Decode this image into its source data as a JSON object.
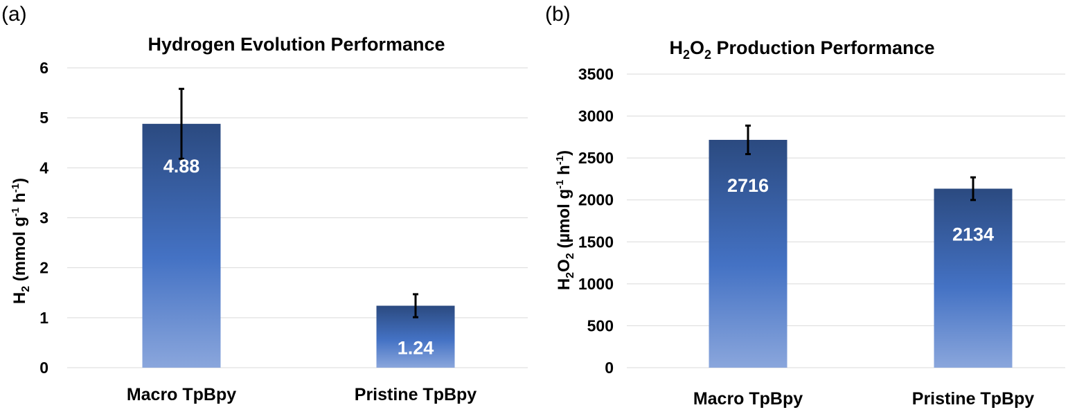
{
  "chart_data": [
    {
      "panel_label": "(a)",
      "type": "bar",
      "title": "Hydrogen Evolution Performance",
      "categories": [
        "Macro TpBpy",
        "Pristine TpBpy"
      ],
      "values": [
        4.88,
        1.24
      ],
      "data_labels": [
        "4.88",
        "1.24"
      ],
      "error": [
        0.7,
        0.23
      ],
      "ylabel": {
        "base": "H",
        "sub": "2",
        "unit_open": " (mmol g",
        "sup1": "-1",
        "mid": " h",
        "sup2": "-1",
        "close": ")"
      },
      "ylim": [
        0,
        6
      ],
      "yticks": [
        0,
        1,
        2,
        3,
        4,
        5,
        6
      ],
      "grid": true,
      "bar_color_top": "#2b4a80",
      "bar_color_mid": "#4472c4",
      "bar_color_bottom": "#8aa6dc"
    },
    {
      "panel_label": "(b)",
      "type": "bar",
      "title": {
        "pre": "H",
        "sub1": "2",
        "mid": "O",
        "sub2": "2",
        "post": " Production Performance"
      },
      "categories": [
        "Macro TpBpy",
        "Pristine TpBpy"
      ],
      "values": [
        2716,
        2134
      ],
      "data_labels": [
        "2716",
        "2134"
      ],
      "error": [
        170,
        135
      ],
      "ylabel": {
        "pre": "H",
        "sub1": "2",
        "mid": "O",
        "sub2": "2",
        "unit_open": " (µmol g",
        "sup1": "-1",
        "mid2": " h",
        "sup2": "-1",
        "close": ")"
      },
      "ylim": [
        0,
        3500
      ],
      "yticks": [
        0,
        500,
        1000,
        1500,
        2000,
        2500,
        3000,
        3500
      ],
      "grid": true,
      "bar_color_top": "#2b4a80",
      "bar_color_mid": "#4472c4",
      "bar_color_bottom": "#8aa6dc"
    }
  ]
}
